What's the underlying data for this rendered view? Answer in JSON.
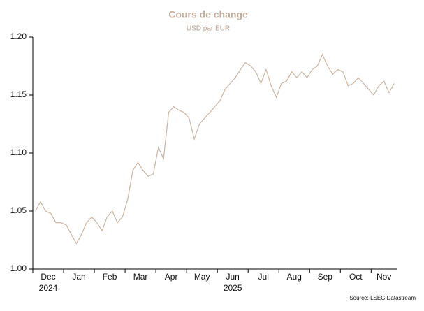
{
  "chart_data": {
    "type": "line",
    "title": "Cours de change",
    "subtitle": "USD par EUR",
    "source": "Source: LSEG Datastream",
    "ylim": [
      1.0,
      1.2
    ],
    "yticks": [
      {
        "value": 1.0,
        "label": "1.00"
      },
      {
        "value": 1.05,
        "label": "1.05"
      },
      {
        "value": 1.1,
        "label": "1.10"
      },
      {
        "value": 1.15,
        "label": "1.15"
      },
      {
        "value": 1.2,
        "label": "1.20"
      }
    ],
    "grid": false,
    "color": "#c9b6a6",
    "months": [
      {
        "name": "Dec",
        "year": "2024",
        "values": [
          1.05,
          1.058,
          1.05,
          1.048,
          1.04,
          1.04
        ]
      },
      {
        "name": "Jan",
        "values": [
          1.038,
          1.03,
          1.022,
          1.03,
          1.04,
          1.045
        ]
      },
      {
        "name": "Feb",
        "values": [
          1.04,
          1.033,
          1.045,
          1.05,
          1.04,
          1.045
        ]
      },
      {
        "name": "Mar",
        "values": [
          1.06,
          1.085,
          1.092,
          1.085,
          1.08,
          1.082
        ]
      },
      {
        "name": "Apr",
        "values": [
          1.105,
          1.095,
          1.135,
          1.14,
          1.137,
          1.135
        ]
      },
      {
        "name": "May",
        "values": [
          1.13,
          1.112,
          1.125,
          1.13,
          1.135,
          1.14
        ]
      },
      {
        "name": "Jun",
        "year": "2025",
        "values": [
          1.145,
          1.155,
          1.16,
          1.165,
          1.172,
          1.178
        ]
      },
      {
        "name": "Jul",
        "values": [
          1.175,
          1.17,
          1.16,
          1.172,
          1.158,
          1.148
        ]
      },
      {
        "name": "Aug",
        "values": [
          1.16,
          1.162,
          1.17,
          1.165,
          1.17,
          1.165
        ]
      },
      {
        "name": "Sep",
        "values": [
          1.172,
          1.175,
          1.185,
          1.175,
          1.168,
          1.172
        ]
      },
      {
        "name": "Oct",
        "values": [
          1.17,
          1.158,
          1.16,
          1.165,
          1.16,
          1.155
        ]
      },
      {
        "name": "Nov",
        "values": [
          1.15,
          1.158,
          1.162,
          1.152,
          1.16
        ]
      }
    ]
  }
}
